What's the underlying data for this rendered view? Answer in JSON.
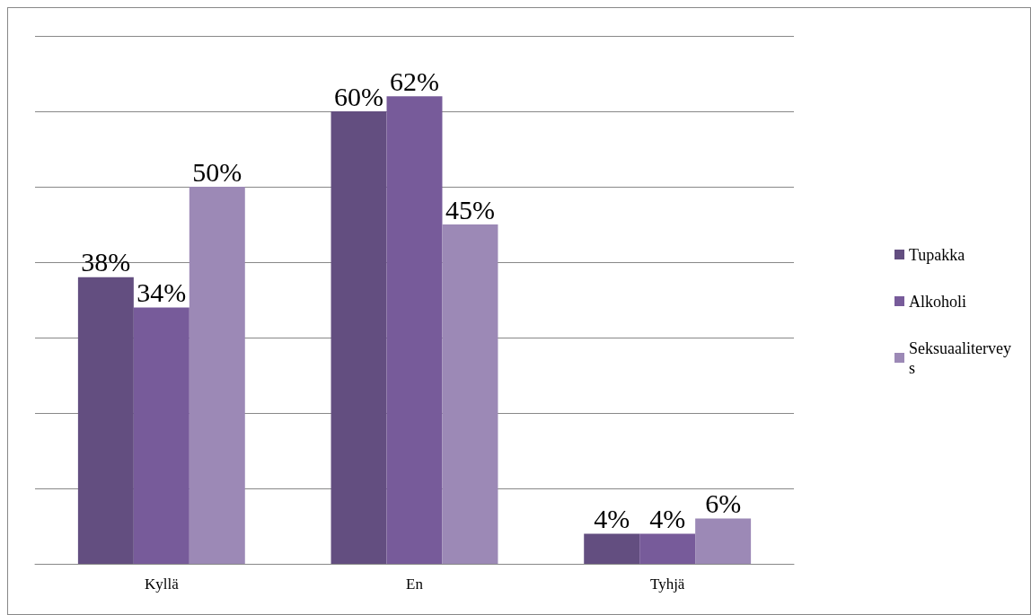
{
  "chart_data": {
    "type": "bar",
    "categories": [
      "Kyllä",
      "En",
      "Tyhjä"
    ],
    "series": [
      {
        "name": "Tupakka",
        "color": "#634e80",
        "values": [
          38,
          60,
          4
        ],
        "value_labels": [
          "38%",
          "60%",
          "4%"
        ]
      },
      {
        "name": "Alkoholi",
        "color": "#775b9a",
        "values": [
          34,
          62,
          4
        ],
        "value_labels": [
          "34%",
          "62%",
          "4%"
        ]
      },
      {
        "name": "Seksuaaliterveys",
        "color": "#9c89b6",
        "values": [
          50,
          45,
          6
        ],
        "value_labels": [
          "50%",
          "45%",
          "6%"
        ]
      }
    ],
    "ylim": [
      0,
      70
    ],
    "yticks": [
      {
        "value": 0,
        "label": null
      },
      {
        "value": 10,
        "label": null
      },
      {
        "value": 20,
        "label": null
      },
      {
        "value": 30,
        "label": null
      },
      {
        "value": 40,
        "label": null
      },
      {
        "value": 50,
        "label": null
      },
      {
        "value": 60,
        "label": null
      },
      {
        "value": 70,
        "label": null
      }
    ],
    "grid": "y",
    "legend": "right"
  }
}
